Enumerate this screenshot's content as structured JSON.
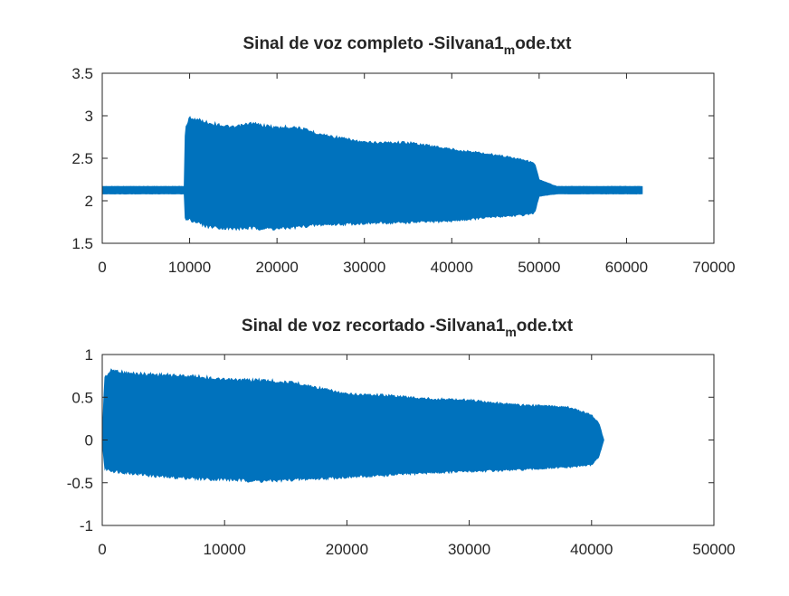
{
  "chart_data": [
    {
      "type": "line",
      "title": "Sinal de voz completo -Silvana1",
      "title_subscript": "m",
      "title_suffix": "ode.txt",
      "xlabel": "",
      "ylabel": "",
      "xlim": [
        0,
        70000
      ],
      "ylim": [
        1.5,
        3.5
      ],
      "xticks": [
        0,
        10000,
        20000,
        30000,
        40000,
        50000,
        60000,
        70000
      ],
      "yticks": [
        1.5,
        2,
        2.5,
        3,
        3.5
      ],
      "ytick_labels": [
        "1.5",
        "2",
        "2.5",
        "3",
        "3.5"
      ],
      "grid": false,
      "color": "#0072bd",
      "series": [
        {
          "envelope_x": [
            0,
            9400,
            9500,
            10000,
            12000,
            15000,
            17000,
            20000,
            22000,
            25000,
            30000,
            35000,
            40000,
            45000,
            48000,
            49500,
            50000,
            52000,
            61800
          ],
          "envelope_upper": [
            2.17,
            2.17,
            2.85,
            3.0,
            2.94,
            2.88,
            2.93,
            2.88,
            2.89,
            2.8,
            2.7,
            2.7,
            2.62,
            2.55,
            2.5,
            2.45,
            2.25,
            2.17,
            2.17
          ],
          "envelope_lower": [
            2.08,
            2.08,
            1.75,
            1.76,
            1.68,
            1.65,
            1.66,
            1.65,
            1.67,
            1.7,
            1.72,
            1.73,
            1.75,
            1.8,
            1.82,
            1.85,
            2.05,
            2.08,
            2.08
          ],
          "x_end": 61800
        }
      ]
    },
    {
      "type": "line",
      "title": "Sinal de voz recortado -Silvana1",
      "title_subscript": "m",
      "title_suffix": "ode.txt",
      "xlabel": "",
      "ylabel": "",
      "xlim": [
        0,
        50000
      ],
      "ylim": [
        -1,
        1
      ],
      "xticks": [
        0,
        10000,
        20000,
        30000,
        40000,
        50000
      ],
      "yticks": [
        -1,
        -0.5,
        0,
        0.5,
        1
      ],
      "ytick_labels": [
        "-1",
        "-0.5",
        "0",
        "0.5",
        "1"
      ],
      "grid": false,
      "color": "#0072bd",
      "series": [
        {
          "envelope_x": [
            0,
            200,
            800,
            2000,
            5000,
            8000,
            10000,
            13000,
            16000,
            20000,
            23000,
            26000,
            30000,
            34000,
            38000,
            40000,
            40600,
            41000
          ],
          "envelope_upper": [
            0.0,
            0.75,
            0.84,
            0.8,
            0.78,
            0.76,
            0.72,
            0.72,
            0.68,
            0.55,
            0.54,
            0.5,
            0.48,
            0.42,
            0.4,
            0.3,
            0.2,
            0.0
          ],
          "envelope_lower": [
            0.0,
            -0.35,
            -0.38,
            -0.4,
            -0.45,
            -0.47,
            -0.48,
            -0.5,
            -0.48,
            -0.45,
            -0.43,
            -0.4,
            -0.38,
            -0.36,
            -0.33,
            -0.3,
            -0.2,
            0.0
          ],
          "x_end": 41000
        }
      ]
    }
  ]
}
